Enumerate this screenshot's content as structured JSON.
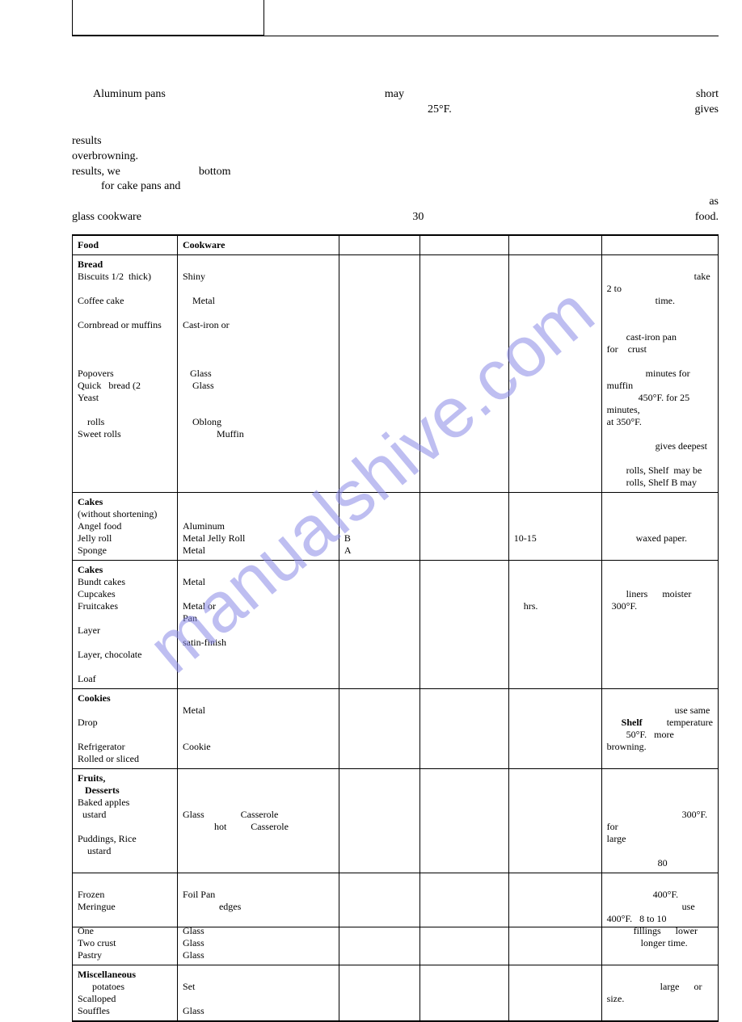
{
  "watermark": "manualshive.com",
  "intro": {
    "l1a": "Aluminum pans",
    "l1b": "may",
    "l1c": "25°F.",
    "l1d": "short",
    "l1e": "gives",
    "l2": "results",
    "l3": "overbrowning.",
    "l4a": "results, we",
    "l4b": "bottom",
    "l5": "for cake pans and",
    "l6a": "glass cookware",
    "l6b": "30",
    "l6c": "as",
    "l6d": "food."
  },
  "table": {
    "headers": [
      "Food",
      "Cookware",
      "",
      "",
      "",
      ""
    ],
    "rows": [
      {
        "food": "<b>Bread</b><br>Biscuits 1/2&nbsp;&nbsp;thick)<br><br>Coffee cake<br><br>Cornbread or muffins<br><br><br><br>Popovers<br>Quick&nbsp;&nbsp;&nbsp;bread&nbsp;(2<br>Yeast<br><br>&nbsp;&nbsp;&nbsp;&nbsp;rolls<br>Sweet rolls",
        "cook": "<br>Shiny<br><br>&nbsp;&nbsp;&nbsp;&nbsp;Metal<br><br>Cast-iron or<br><br><br><br>&nbsp;&nbsp;&nbsp;Glass<br>&nbsp;&nbsp;&nbsp;&nbsp;Glass<br><br><br>&nbsp;&nbsp;&nbsp;&nbsp;Oblong<br>&nbsp;&nbsp;&nbsp;&nbsp;&nbsp;&nbsp;&nbsp;&nbsp;&nbsp;&nbsp;&nbsp;&nbsp;&nbsp;&nbsp;Muffin",
        "c3": "",
        "c4": "",
        "c5": "",
        "notes": "<br>&nbsp;&nbsp;&nbsp;&nbsp;&nbsp;&nbsp;&nbsp;&nbsp;&nbsp;&nbsp;&nbsp;&nbsp;&nbsp;&nbsp;&nbsp;&nbsp;&nbsp;&nbsp;&nbsp;&nbsp;&nbsp;&nbsp;&nbsp;&nbsp;&nbsp;&nbsp;&nbsp;&nbsp;&nbsp;&nbsp;&nbsp;&nbsp;&nbsp;&nbsp;&nbsp;&nbsp;take 2 to<br>&nbsp;&nbsp;&nbsp;&nbsp;&nbsp;&nbsp;&nbsp;&nbsp;&nbsp;&nbsp;&nbsp;&nbsp;&nbsp;&nbsp;&nbsp;&nbsp;&nbsp;&nbsp;&nbsp;&nbsp;time.<br><br><br>&nbsp;&nbsp;&nbsp;&nbsp;&nbsp;&nbsp;&nbsp;&nbsp;cast-iron pan for&nbsp;&nbsp;&nbsp;&nbsp;crust<br><br>&nbsp;&nbsp;&nbsp;&nbsp;&nbsp;&nbsp;&nbsp;&nbsp;&nbsp;&nbsp;&nbsp;&nbsp;&nbsp;&nbsp;&nbsp;&nbsp;minutes for muffin<br>&nbsp;&nbsp;&nbsp;&nbsp;&nbsp;&nbsp;&nbsp;&nbsp;&nbsp;&nbsp;&nbsp;&nbsp;&nbsp;450°F. for 25 minutes,<br>at 350°F.<br><br>&nbsp;&nbsp;&nbsp;&nbsp;&nbsp;&nbsp;&nbsp;&nbsp;&nbsp;&nbsp;&nbsp;&nbsp;&nbsp;&nbsp;&nbsp;&nbsp;&nbsp;&nbsp;&nbsp;&nbsp;gives deepest<br><br>&nbsp;&nbsp;&nbsp;&nbsp;&nbsp;&nbsp;&nbsp;&nbsp;rolls, Shelf&nbsp;&nbsp;may be<br>&nbsp;&nbsp;&nbsp;&nbsp;&nbsp;&nbsp;&nbsp;&nbsp;rolls, Shelf B may"
      },
      {
        "food": "<b>Cakes</b><br>(without shortening)<br>Angel food<br>Jelly roll<br>Sponge",
        "cook": "<br><br>Aluminum<br>Metal Jelly Roll<br>Metal",
        "c3": "<br><br><br>B<br>A",
        "c4": "",
        "c5": "<br><br><br>10-15",
        "notes": "<br><br><br>&nbsp;&nbsp;&nbsp;&nbsp;&nbsp;&nbsp;&nbsp;&nbsp;&nbsp;&nbsp;&nbsp;&nbsp;waxed paper."
      },
      {
        "food": "<b>Cakes</b><br>Bundt cakes<br>Cupcakes<br>Fruitcakes<br><br>Layer<br><br>Layer, chocolate<br><br>Loaf",
        "cook": "<br>Metal<br><br>Metal or<br>Pan<br><br>satin-finish",
        "c3": "",
        "c4": "",
        "c5": "<br><br><br>&nbsp;&nbsp;&nbsp;&nbsp;hrs.",
        "notes": "<br><br>&nbsp;&nbsp;&nbsp;&nbsp;&nbsp;&nbsp;&nbsp;&nbsp;liners&nbsp;&nbsp;&nbsp;&nbsp;&nbsp;&nbsp;moister<br>&nbsp;&nbsp;300°F."
      },
      {
        "food": "<b>Cookies</b><br><br>Drop<br><br>Refrigerator<br>Rolled or sliced",
        "cook": "<br>Metal<br><br><br>Cookie",
        "c3": "",
        "c4": "",
        "c5": "",
        "notes": "<br>&nbsp;&nbsp;&nbsp;&nbsp;&nbsp;&nbsp;&nbsp;&nbsp;&nbsp;&nbsp;&nbsp;&nbsp;&nbsp;&nbsp;&nbsp;&nbsp;&nbsp;&nbsp;&nbsp;&nbsp;&nbsp;&nbsp;&nbsp;&nbsp;&nbsp;&nbsp;&nbsp;&nbsp;use same<br>&nbsp;&nbsp;&nbsp;&nbsp;&nbsp;&nbsp;<b>Shelf</b>&nbsp;&nbsp;&nbsp;&nbsp;&nbsp;&nbsp;&nbsp;&nbsp;&nbsp;&nbsp;temperature<br>&nbsp;&nbsp;&nbsp;&nbsp;&nbsp;&nbsp;&nbsp;&nbsp;50°F.&nbsp;&nbsp;&nbsp;more browning."
      },
      {
        "food": "<b>Fruits,</b><br>&nbsp;&nbsp;&nbsp;<b>Desserts</b><br>Baked apples<br>&nbsp;&nbsp;ustard<br><br>Puddings, Rice<br>&nbsp;&nbsp;&nbsp;&nbsp;ustard",
        "cook": "<br><br><br>Glass&nbsp;&nbsp;&nbsp;&nbsp;&nbsp;&nbsp;&nbsp;&nbsp;&nbsp;&nbsp;&nbsp;&nbsp;&nbsp;&nbsp;&nbsp;Casserole<br>&nbsp;&nbsp;&nbsp;&nbsp;&nbsp;&nbsp;&nbsp;&nbsp;&nbsp;&nbsp;&nbsp;&nbsp;&nbsp;hot&nbsp;&nbsp;&nbsp;&nbsp;&nbsp;&nbsp;&nbsp;&nbsp;&nbsp;&nbsp;Casserole",
        "c3": "",
        "c4": "",
        "c5": "",
        "notes": "<br><br><br>&nbsp;&nbsp;&nbsp;&nbsp;&nbsp;&nbsp;&nbsp;&nbsp;&nbsp;&nbsp;&nbsp;&nbsp;&nbsp;&nbsp;&nbsp;&nbsp;&nbsp;&nbsp;&nbsp;&nbsp;&nbsp;&nbsp;&nbsp;&nbsp;&nbsp;&nbsp;&nbsp;&nbsp;&nbsp;&nbsp;&nbsp;300°F. for<br>large<br><br>&nbsp;&nbsp;&nbsp;&nbsp;&nbsp;&nbsp;&nbsp;&nbsp;&nbsp;&nbsp;&nbsp;&nbsp;&nbsp;&nbsp;&nbsp;&nbsp;&nbsp;&nbsp;&nbsp;&nbsp;&nbsp;80"
      },
      {
        "food": "<br>Frozen<br>Meringue<br><br>One<br>Two crust<br>Pastry",
        "cook": "<br>Foil Pan<br>&nbsp;&nbsp;&nbsp;&nbsp;&nbsp;&nbsp;&nbsp;&nbsp;&nbsp;&nbsp;&nbsp;&nbsp;&nbsp;&nbsp;&nbsp;edges<br><br>Glass<br>Glass<br>Glass",
        "c3": "",
        "c4": "",
        "c5": "",
        "notes": "<br>&nbsp;&nbsp;&nbsp;&nbsp;&nbsp;&nbsp;&nbsp;&nbsp;&nbsp;&nbsp;&nbsp;&nbsp;&nbsp;&nbsp;&nbsp;&nbsp;&nbsp;&nbsp;&nbsp;400°F.<br>&nbsp;&nbsp;&nbsp;&nbsp;&nbsp;&nbsp;&nbsp;&nbsp;&nbsp;&nbsp;&nbsp;&nbsp;&nbsp;&nbsp;&nbsp;&nbsp;&nbsp;&nbsp;&nbsp;&nbsp;&nbsp;&nbsp;&nbsp;&nbsp;&nbsp;&nbsp;&nbsp;&nbsp;&nbsp;&nbsp;&nbsp;use<br>400°F.&nbsp;&nbsp;&nbsp;8 to 10<br>&nbsp;&nbsp;&nbsp;&nbsp;&nbsp;&nbsp;&nbsp;&nbsp;&nbsp;&nbsp;&nbsp;fillings&nbsp;&nbsp;&nbsp;&nbsp;&nbsp;&nbsp;lower<br>&nbsp;&nbsp;&nbsp;&nbsp;&nbsp;&nbsp;&nbsp;&nbsp;&nbsp;&nbsp;&nbsp;&nbsp;&nbsp;&nbsp;longer time."
      },
      {
        "food": "<b>Miscellaneous</b><br>&nbsp;&nbsp;&nbsp;&nbsp;&nbsp;&nbsp;potatoes<br>Scalloped<br>Souffles",
        "cook": "<br>Set<br><br>Glass",
        "c3": "",
        "c4": "",
        "c5": "",
        "notes": "<br>&nbsp;&nbsp;&nbsp;&nbsp;&nbsp;&nbsp;&nbsp;&nbsp;&nbsp;&nbsp;&nbsp;&nbsp;&nbsp;&nbsp;&nbsp;&nbsp;&nbsp;&nbsp;&nbsp;&nbsp;&nbsp;&nbsp;large&nbsp;&nbsp;&nbsp;&nbsp;&nbsp;&nbsp;or<br>size."
      }
    ]
  }
}
